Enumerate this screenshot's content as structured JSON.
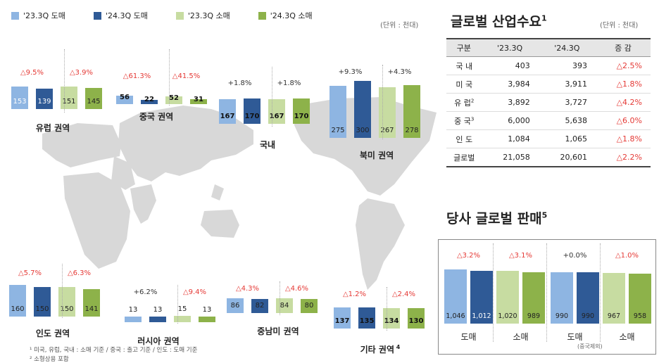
{
  "colors": {
    "c1": "#8eb5e2",
    "c2": "#2f5a96",
    "c3": "#c7dca1",
    "c4": "#8db24a",
    "red": "#e53935",
    "map": "#d8d8d8"
  },
  "legend": [
    "'23.3Q 도매",
    "'24.3Q 도매",
    "'23.3Q 소매",
    "'24.3Q 소매"
  ],
  "unit_left": "(단위 : 천대)",
  "unit_right": "(단위 : 천대)",
  "demand": {
    "title": "글로벌 산업수요",
    "sup": "1",
    "headers": [
      "구분",
      "'23.3Q",
      "'24.3Q",
      "증 감"
    ],
    "rows": [
      {
        "name": "국 내",
        "sup": "",
        "a": "403",
        "b": "393",
        "c": "△2.5%"
      },
      {
        "name": "미 국",
        "sup": "",
        "a": "3,984",
        "b": "3,911",
        "c": "△1.8%"
      },
      {
        "name": "유 럽",
        "sup": "2",
        "a": "3,892",
        "b": "3,727",
        "c": "△4.2%"
      },
      {
        "name": "중 국",
        "sup": "3",
        "a": "6,000",
        "b": "5,638",
        "c": "△6.0%"
      },
      {
        "name": "인 도",
        "sup": "",
        "a": "1,084",
        "b": "1,065",
        "c": "△1.8%"
      },
      {
        "name": "글로벌",
        "sup": "",
        "a": "21,058",
        "b": "20,601",
        "c": "△2.2%"
      }
    ]
  },
  "sales": {
    "title": "당사 글로벌 판매",
    "sup": "5",
    "note": "(중국제외)"
  },
  "footnotes": [
    "¹ 미국, 유럽, 국내 : 소매 기준 / 중국 : 출고 기준 / 인도 : 도매 기준",
    "² 소형상용 포함"
  ],
  "chart_data": [
    {
      "type": "bar",
      "title": "유럽 권역",
      "categories": [
        "'23.3Q 도매",
        "'24.3Q 도매",
        "'23.3Q 소매",
        "'24.3Q 소매"
      ],
      "values": [
        153,
        139,
        151,
        145
      ],
      "changes": [
        "△9.5%",
        "△3.9%"
      ]
    },
    {
      "type": "bar",
      "title": "중국 권역",
      "categories": [
        "'23.3Q 도매",
        "'24.3Q 도매",
        "'23.3Q 소매",
        "'24.3Q 소매"
      ],
      "values": [
        56,
        22,
        52,
        31
      ],
      "changes": [
        "△61.3%",
        "△41.5%"
      ]
    },
    {
      "type": "bar",
      "title": "국내",
      "categories": [
        "'23.3Q 도매",
        "'24.3Q 도매",
        "'23.3Q 소매",
        "'24.3Q 소매"
      ],
      "values": [
        167,
        170,
        167,
        170
      ],
      "changes": [
        "+1.8%",
        "+1.8%"
      ]
    },
    {
      "type": "bar",
      "title": "북미 권역",
      "categories": [
        "'23.3Q 도매",
        "'24.3Q 도매",
        "'23.3Q 소매",
        "'24.3Q 소매"
      ],
      "values": [
        275,
        300,
        267,
        278
      ],
      "changes": [
        "+9.3%",
        "+4.3%"
      ]
    },
    {
      "type": "bar",
      "title": "인도 권역",
      "categories": [
        "'23.3Q 도매",
        "'24.3Q 도매",
        "'23.3Q 소매",
        "'24.3Q 소매"
      ],
      "values": [
        160,
        150,
        150,
        141
      ],
      "changes": [
        "△5.7%",
        "△6.3%"
      ]
    },
    {
      "type": "bar",
      "title": "러시아 권역",
      "categories": [
        "'23.3Q 도매",
        "'24.3Q 도매",
        "'23.3Q 소매",
        "'24.3Q 소매"
      ],
      "values": [
        13,
        13,
        15,
        13
      ],
      "changes": [
        "+6.2%",
        "△9.4%"
      ]
    },
    {
      "type": "bar",
      "title": "중남미 권역",
      "categories": [
        "'23.3Q 도매",
        "'24.3Q 도매",
        "'23.3Q 소매",
        "'24.3Q 소매"
      ],
      "values": [
        86,
        82,
        84,
        80
      ],
      "changes": [
        "△4.3%",
        "△4.6%"
      ]
    },
    {
      "type": "bar",
      "title": "기타 권역",
      "title_sup": "4",
      "categories": [
        "'23.3Q 도매",
        "'24.3Q 도매",
        "'23.3Q 소매",
        "'24.3Q 소매"
      ],
      "values": [
        137,
        135,
        134,
        130
      ],
      "changes": [
        "△1.2%",
        "△2.4%"
      ]
    },
    {
      "type": "bar",
      "title": "당사 글로벌 판매",
      "groups": [
        "도매",
        "소매",
        "도매",
        "소매"
      ],
      "values": [
        1046,
        1012,
        1020,
        989,
        990,
        990,
        967,
        958
      ],
      "changes": [
        "△3.2%",
        "△3.1%",
        "+0.0%",
        "△1.0%"
      ]
    }
  ]
}
